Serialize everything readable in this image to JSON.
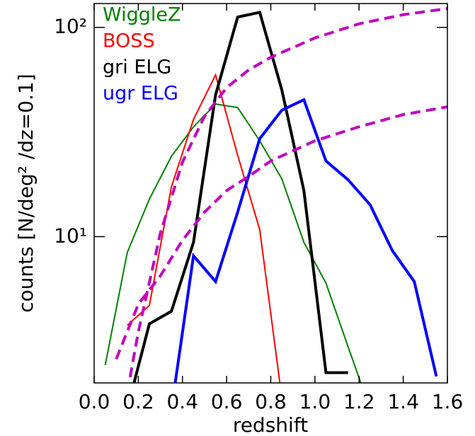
{
  "chart_data": {
    "type": "line",
    "log_y": true,
    "legend": "upper left",
    "legend_style": "colored-text",
    "xlabel": "redshift",
    "ylabel": "counts [N/deg² /dz=0.1]",
    "xlim": [
      0,
      1.6
    ],
    "ylim": [
      2,
      130
    ],
    "xticks": [
      {
        "value": 0,
        "label": "0.0"
      },
      {
        "value": 0.2,
        "label": "0.2"
      },
      {
        "value": 0.4,
        "label": "0.4"
      },
      {
        "value": 0.6,
        "label": "0.6"
      },
      {
        "value": 0.8,
        "label": "0.8"
      },
      {
        "value": 1,
        "label": "1.0"
      },
      {
        "value": 1.2,
        "label": "1.2"
      },
      {
        "value": 1.4,
        "label": "1.4"
      },
      {
        "value": 1.6,
        "label": "1.6"
      }
    ],
    "yticks": [
      {
        "value": 10,
        "label": "10¹"
      },
      {
        "value": 100,
        "label": "10²"
      }
    ],
    "series": [
      {
        "name": "WiggleZ",
        "color": "#008000",
        "width": 2,
        "x": [
          0.05,
          0.15,
          0.25,
          0.35,
          0.45,
          0.55,
          0.65,
          0.75,
          0.85,
          0.95,
          1.05,
          1.15,
          1.25
        ],
        "values": [
          2.43,
          8.4,
          15.1,
          24.2,
          33.5,
          43,
          41.4,
          28.7,
          18.9,
          9.4,
          6,
          2.98,
          1.5
        ]
      },
      {
        "name": "BOSS",
        "color": "#ff0000",
        "width": 2,
        "x": [
          0.15,
          0.25,
          0.35,
          0.45,
          0.55,
          0.65,
          0.75,
          0.85
        ],
        "values": [
          3.77,
          4.69,
          17.3,
          36.3,
          59.3,
          24.5,
          10.8,
          1.7
        ]
      },
      {
        "name": "gri ELG",
        "color": "#000000",
        "width": 4,
        "x": [
          0.15,
          0.25,
          0.35,
          0.45,
          0.55,
          0.65,
          0.75,
          0.85,
          0.95,
          1.05,
          1.15
        ],
        "values": [
          1.5,
          3.83,
          4.4,
          9.4,
          47.6,
          112,
          118,
          50.3,
          16.6,
          2.24,
          2.24
        ]
      },
      {
        "name": "ugr ELG",
        "color": "#0000ff",
        "width": 4,
        "x": [
          0.35,
          0.45,
          0.55,
          0.65,
          0.75,
          0.85,
          0.95,
          1.05,
          1.15,
          1.25,
          1.35,
          1.45,
          1.55
        ],
        "values": [
          1.5,
          8.1,
          6.1,
          13.1,
          29.4,
          40.2,
          45.1,
          23,
          18.7,
          14.2,
          8.6,
          6.1,
          2.15
        ]
      },
      {
        "color": "#bf00bf",
        "width": 4,
        "dashed": true,
        "x": [
          0.15,
          0.2,
          0.3,
          0.4,
          0.5,
          0.6,
          0.7,
          0.8,
          1,
          1.2,
          1.4,
          1.6
        ],
        "values": [
          1.8,
          3.5,
          10.4,
          22.7,
          37.6,
          51.5,
          62.6,
          72,
          89,
          104,
          115,
          123
        ]
      },
      {
        "color": "#bf00bf",
        "width": 4,
        "dashed": true,
        "x": [
          0.1,
          0.2,
          0.3,
          0.4,
          0.5,
          0.6,
          0.7,
          0.8,
          1,
          1.2,
          1.4,
          1.6
        ],
        "values": [
          2.6,
          4.76,
          6.5,
          9.6,
          13.1,
          16.6,
          19.4,
          23,
          28.7,
          33.5,
          38.3,
          41.7
        ]
      }
    ]
  }
}
